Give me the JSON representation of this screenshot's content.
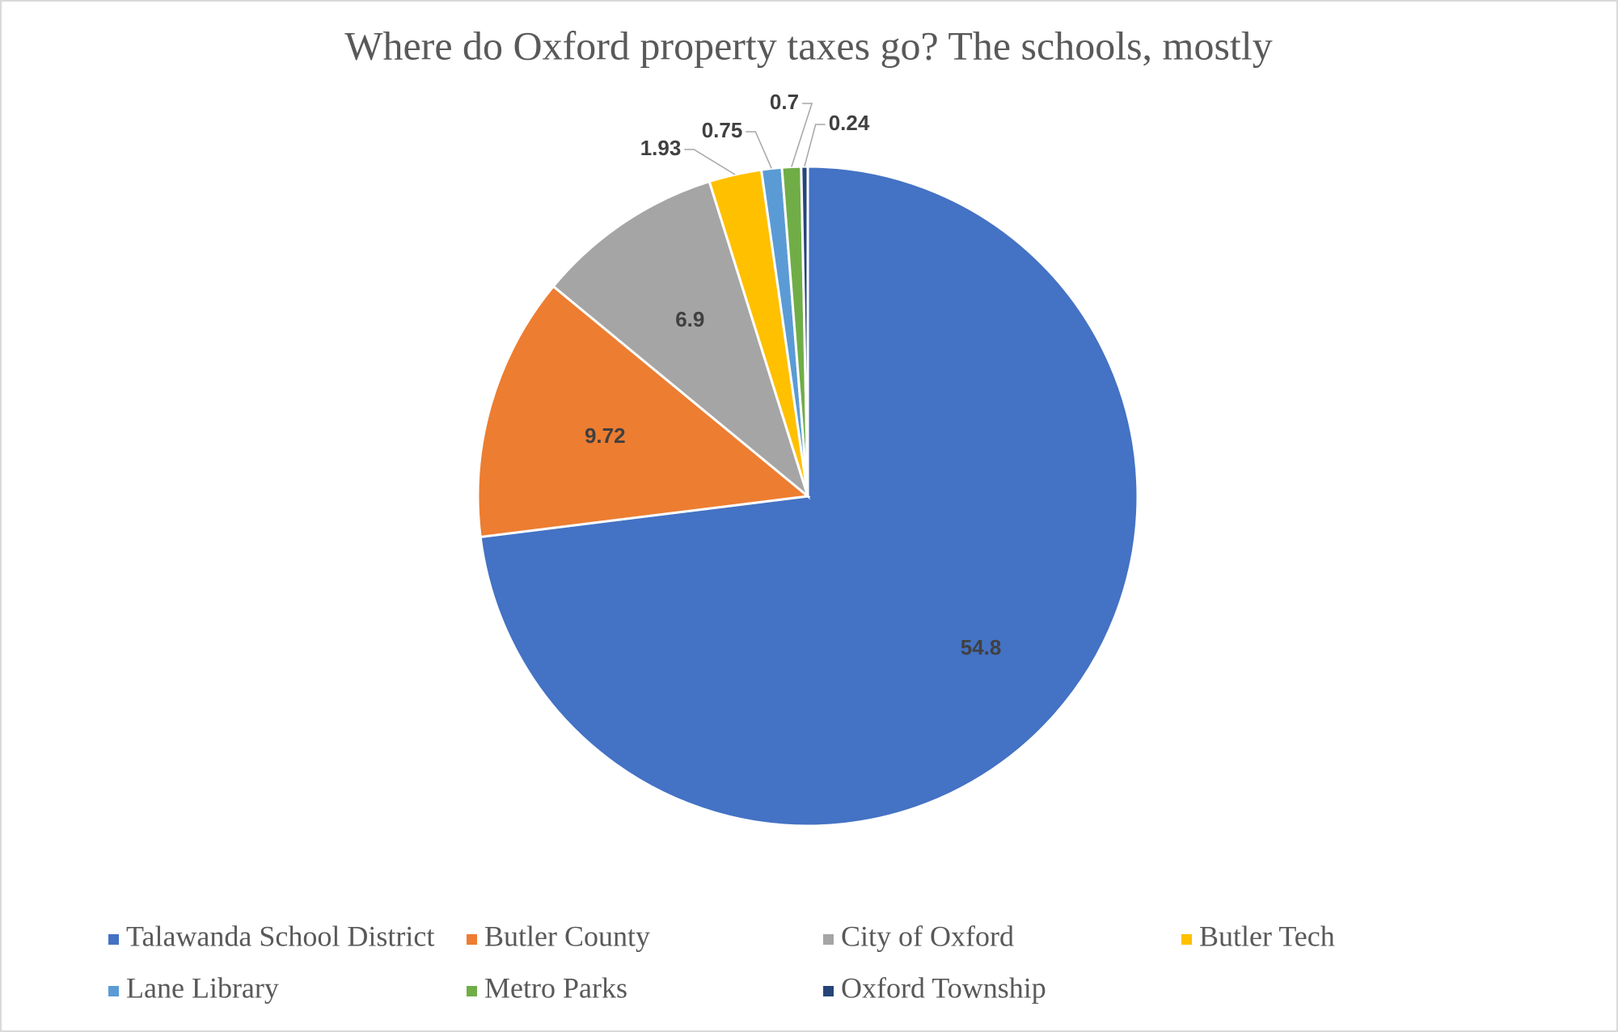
{
  "chart_data": {
    "type": "pie",
    "title": "Where do Oxford property taxes go? The schools, mostly",
    "categories": [
      "Talawanda School District",
      "Butler County",
      "City of Oxford",
      "Butler Tech",
      "Lane Library",
      "Metro Parks",
      "Oxford Township"
    ],
    "values": [
      54.8,
      9.72,
      6.9,
      1.93,
      0.75,
      0.7,
      0.24
    ],
    "colors": [
      "#4472c4",
      "#ed7d31",
      "#a5a5a5",
      "#ffc000",
      "#5b9bd5",
      "#70ad47",
      "#264478"
    ],
    "legend": "bottom"
  }
}
